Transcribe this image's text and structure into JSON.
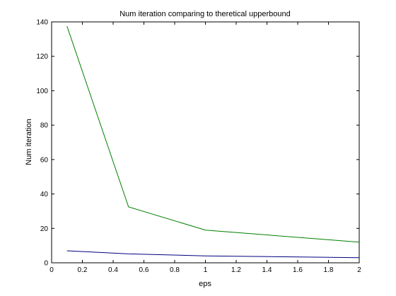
{
  "chart_data": {
    "type": "line",
    "title": "Num iteration comparing to theretical upperbound",
    "xlabel": "eps",
    "ylabel": "Num iteration",
    "xlim": [
      0,
      2
    ],
    "ylim": [
      0,
      140
    ],
    "xticks": [
      0,
      0.2,
      0.4,
      0.6,
      0.8,
      1,
      1.2,
      1.4,
      1.6,
      1.8,
      2
    ],
    "xtick_labels": [
      "0",
      "0.2",
      "0.4",
      "0.6",
      "0.8",
      "1",
      "1.2",
      "1.4",
      "1.6",
      "1.8",
      "2"
    ],
    "yticks": [
      0,
      20,
      40,
      60,
      80,
      100,
      120,
      140
    ],
    "ytick_labels": [
      "0",
      "20",
      "40",
      "60",
      "80",
      "100",
      "120",
      "140"
    ],
    "grid": false,
    "legend": false,
    "series": [
      {
        "color": "#008000",
        "x": [
          0.1,
          0.5,
          1,
          2
        ],
        "y": [
          137.5,
          32.5,
          19,
          12
        ]
      },
      {
        "color": "#00007f",
        "x": [
          0.1,
          0.5,
          1,
          2
        ],
        "y": [
          7,
          5.2,
          4,
          3
        ]
      }
    ]
  }
}
